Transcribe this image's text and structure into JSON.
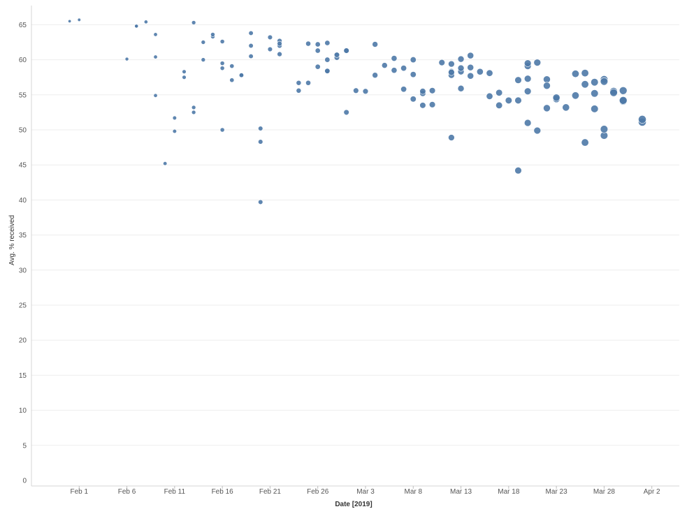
{
  "chart_data": {
    "type": "scatter",
    "title": "",
    "xlabel": "Date [2019]",
    "ylabel": "Avg. % received",
    "x_ticks": [
      {
        "label": "Feb 1",
        "date": "2019-02-01"
      },
      {
        "label": "Feb 6",
        "date": "2019-02-06"
      },
      {
        "label": "Feb 11",
        "date": "2019-02-11"
      },
      {
        "label": "Feb 16",
        "date": "2019-02-16"
      },
      {
        "label": "Feb 21",
        "date": "2019-02-21"
      },
      {
        "label": "Feb 26",
        "date": "2019-02-26"
      },
      {
        "label": "Mar 3",
        "date": "2019-03-03"
      },
      {
        "label": "Mar 8",
        "date": "2019-03-08"
      },
      {
        "label": "Mar 13",
        "date": "2019-03-13"
      },
      {
        "label": "Mar 18",
        "date": "2019-03-18"
      },
      {
        "label": "Mar 23",
        "date": "2019-03-23"
      },
      {
        "label": "Mar 28",
        "date": "2019-03-28"
      },
      {
        "label": "Apr 2",
        "date": "2019-04-02"
      }
    ],
    "xlim": [
      "2019-01-27",
      "2019-04-04"
    ],
    "ylim": [
      0,
      67
    ],
    "y_ticks": [
      0,
      5,
      10,
      15,
      20,
      25,
      30,
      35,
      40,
      45,
      50,
      55,
      60,
      65
    ],
    "grid": true,
    "marker_color": "#4e79a7",
    "points": [
      {
        "x": "2019-01-31",
        "y": 65.5
      },
      {
        "x": "2019-02-01",
        "y": 65.7
      },
      {
        "x": "2019-02-06",
        "y": 60.1
      },
      {
        "x": "2019-02-07",
        "y": 64.8
      },
      {
        "x": "2019-02-07",
        "y": 64.8
      },
      {
        "x": "2019-02-08",
        "y": 65.4
      },
      {
        "x": "2019-02-09",
        "y": 63.6
      },
      {
        "x": "2019-02-09",
        "y": 54.9
      },
      {
        "x": "2019-02-09",
        "y": 60.4
      },
      {
        "x": "2019-02-10",
        "y": 45.2
      },
      {
        "x": "2019-02-11",
        "y": 49.8
      },
      {
        "x": "2019-02-11",
        "y": 51.7
      },
      {
        "x": "2019-02-12",
        "y": 58.3
      },
      {
        "x": "2019-02-12",
        "y": 57.5
      },
      {
        "x": "2019-02-13",
        "y": 53.2
      },
      {
        "x": "2019-02-13",
        "y": 52.5
      },
      {
        "x": "2019-02-13",
        "y": 65.3
      },
      {
        "x": "2019-02-14",
        "y": 62.5
      },
      {
        "x": "2019-02-14",
        "y": 60.0
      },
      {
        "x": "2019-02-15",
        "y": 63.3
      },
      {
        "x": "2019-02-15",
        "y": 63.6
      },
      {
        "x": "2019-02-16",
        "y": 62.6
      },
      {
        "x": "2019-02-16",
        "y": 59.5
      },
      {
        "x": "2019-02-16",
        "y": 58.8
      },
      {
        "x": "2019-02-16",
        "y": 50.0
      },
      {
        "x": "2019-02-17",
        "y": 59.1
      },
      {
        "x": "2019-02-17",
        "y": 57.1
      },
      {
        "x": "2019-02-18",
        "y": 57.8
      },
      {
        "x": "2019-02-18",
        "y": 57.8
      },
      {
        "x": "2019-02-19",
        "y": 62.0
      },
      {
        "x": "2019-02-19",
        "y": 63.8
      },
      {
        "x": "2019-02-19",
        "y": 60.5
      },
      {
        "x": "2019-02-20",
        "y": 50.2
      },
      {
        "x": "2019-02-20",
        "y": 48.3
      },
      {
        "x": "2019-02-20",
        "y": 39.7
      },
      {
        "x": "2019-02-21",
        "y": 63.2
      },
      {
        "x": "2019-02-21",
        "y": 61.5
      },
      {
        "x": "2019-02-22",
        "y": 60.8
      },
      {
        "x": "2019-02-22",
        "y": 62.0
      },
      {
        "x": "2019-02-22",
        "y": 62.7
      },
      {
        "x": "2019-02-22",
        "y": 62.3
      },
      {
        "x": "2019-02-24",
        "y": 56.7
      },
      {
        "x": "2019-02-24",
        "y": 55.6
      },
      {
        "x": "2019-02-25",
        "y": 56.7
      },
      {
        "x": "2019-02-25",
        "y": 62.3
      },
      {
        "x": "2019-02-26",
        "y": 62.2
      },
      {
        "x": "2019-02-26",
        "y": 61.3
      },
      {
        "x": "2019-02-26",
        "y": 59.0
      },
      {
        "x": "2019-02-27",
        "y": 62.4
      },
      {
        "x": "2019-02-27",
        "y": 60.0
      },
      {
        "x": "2019-02-27",
        "y": 58.4
      },
      {
        "x": "2019-02-27",
        "y": 58.4
      },
      {
        "x": "2019-02-28",
        "y": 60.7
      },
      {
        "x": "2019-02-28",
        "y": 60.3
      },
      {
        "x": "2019-02-28",
        "y": 60.7
      },
      {
        "x": "2019-03-01",
        "y": 52.5
      },
      {
        "x": "2019-03-01",
        "y": 61.3
      },
      {
        "x": "2019-03-01",
        "y": 61.3
      },
      {
        "x": "2019-03-02",
        "y": 55.6
      },
      {
        "x": "2019-03-03",
        "y": 55.5
      },
      {
        "x": "2019-03-04",
        "y": 62.2
      },
      {
        "x": "2019-03-04",
        "y": 57.8
      },
      {
        "x": "2019-03-05",
        "y": 59.2
      },
      {
        "x": "2019-03-06",
        "y": 60.2
      },
      {
        "x": "2019-03-06",
        "y": 58.5
      },
      {
        "x": "2019-03-07",
        "y": 58.8
      },
      {
        "x": "2019-03-07",
        "y": 55.8
      },
      {
        "x": "2019-03-08",
        "y": 60.0
      },
      {
        "x": "2019-03-08",
        "y": 57.9
      },
      {
        "x": "2019-03-08",
        "y": 54.4
      },
      {
        "x": "2019-03-09",
        "y": 53.5
      },
      {
        "x": "2019-03-09",
        "y": 55.2
      },
      {
        "x": "2019-03-09",
        "y": 55.5
      },
      {
        "x": "2019-03-10",
        "y": 53.6
      },
      {
        "x": "2019-03-10",
        "y": 55.6
      },
      {
        "x": "2019-03-11",
        "y": 59.6
      },
      {
        "x": "2019-03-12",
        "y": 48.9
      },
      {
        "x": "2019-03-12",
        "y": 59.4
      },
      {
        "x": "2019-03-12",
        "y": 58.3
      },
      {
        "x": "2019-03-12",
        "y": 57.8
      },
      {
        "x": "2019-03-12",
        "y": 58.2
      },
      {
        "x": "2019-03-13",
        "y": 60.1
      },
      {
        "x": "2019-03-13",
        "y": 58.3
      },
      {
        "x": "2019-03-13",
        "y": 58.8
      },
      {
        "x": "2019-03-13",
        "y": 55.9
      },
      {
        "x": "2019-03-14",
        "y": 58.9
      },
      {
        "x": "2019-03-14",
        "y": 57.7
      },
      {
        "x": "2019-03-14",
        "y": 60.6
      },
      {
        "x": "2019-03-15",
        "y": 58.3
      },
      {
        "x": "2019-03-16",
        "y": 58.1
      },
      {
        "x": "2019-03-16",
        "y": 54.8
      },
      {
        "x": "2019-03-17",
        "y": 55.3
      },
      {
        "x": "2019-03-17",
        "y": 53.5
      },
      {
        "x": "2019-03-18",
        "y": 54.2
      },
      {
        "x": "2019-03-19",
        "y": 44.2
      },
      {
        "x": "2019-03-19",
        "y": 54.2
      },
      {
        "x": "2019-03-19",
        "y": 57.1
      },
      {
        "x": "2019-03-20",
        "y": 57.3
      },
      {
        "x": "2019-03-20",
        "y": 59.1
      },
      {
        "x": "2019-03-20",
        "y": 59.5
      },
      {
        "x": "2019-03-20",
        "y": 55.5
      },
      {
        "x": "2019-03-20",
        "y": 51.0
      },
      {
        "x": "2019-03-21",
        "y": 49.9
      },
      {
        "x": "2019-03-21",
        "y": 59.6
      },
      {
        "x": "2019-03-22",
        "y": 57.2
      },
      {
        "x": "2019-03-22",
        "y": 56.3
      },
      {
        "x": "2019-03-22",
        "y": 53.1
      },
      {
        "x": "2019-03-23",
        "y": 54.4
      },
      {
        "x": "2019-03-23",
        "y": 54.6
      },
      {
        "x": "2019-03-24",
        "y": 53.2
      },
      {
        "x": "2019-03-25",
        "y": 54.9
      },
      {
        "x": "2019-03-25",
        "y": 58.0
      },
      {
        "x": "2019-03-26",
        "y": 48.2
      },
      {
        "x": "2019-03-26",
        "y": 58.1
      },
      {
        "x": "2019-03-26",
        "y": 56.5
      },
      {
        "x": "2019-03-27",
        "y": 56.8
      },
      {
        "x": "2019-03-27",
        "y": 55.2
      },
      {
        "x": "2019-03-27",
        "y": 53.0
      },
      {
        "x": "2019-03-28",
        "y": 49.2
      },
      {
        "x": "2019-03-28",
        "y": 50.1
      },
      {
        "x": "2019-03-28",
        "y": 57.2
      },
      {
        "x": "2019-03-28",
        "y": 56.9
      },
      {
        "x": "2019-03-29",
        "y": 55.5
      },
      {
        "x": "2019-03-29",
        "y": 55.3
      },
      {
        "x": "2019-03-30",
        "y": 55.6
      },
      {
        "x": "2019-03-30",
        "y": 54.1
      },
      {
        "x": "2019-03-30",
        "y": 54.2
      },
      {
        "x": "2019-04-01",
        "y": 51.1
      },
      {
        "x": "2019-04-01",
        "y": 51.5
      }
    ]
  }
}
